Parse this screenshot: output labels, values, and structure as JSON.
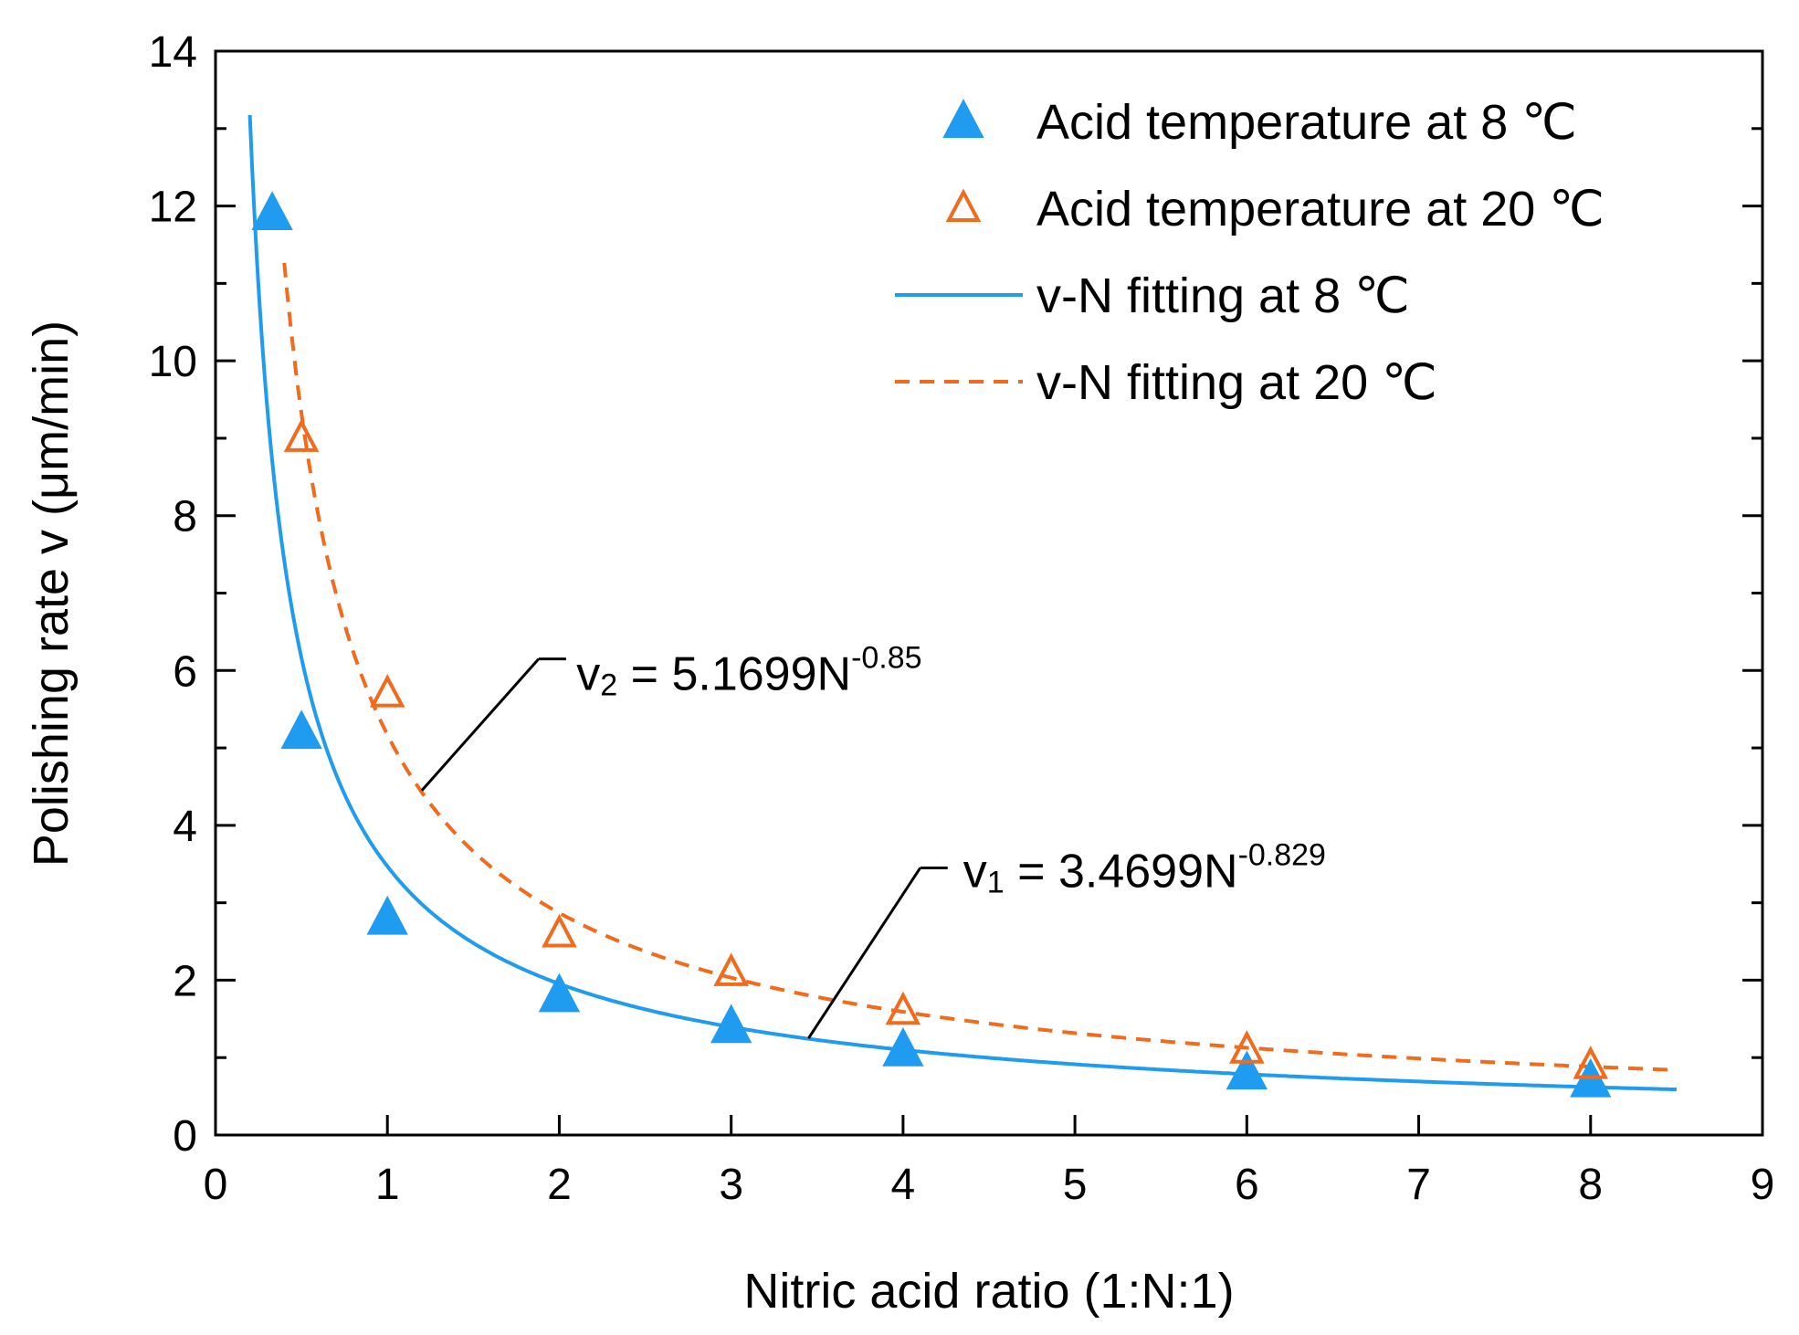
{
  "chart_data": {
    "type": "scatter",
    "title": "",
    "xlabel": "Nitric acid ratio (1:N:1)",
    "ylabel": "Polishing rate v (μm/min)",
    "xlim": [
      0,
      9
    ],
    "ylim": [
      0,
      14
    ],
    "xticks": [
      0,
      1,
      2,
      3,
      4,
      5,
      6,
      7,
      8,
      9
    ],
    "yticks": [
      0,
      2,
      4,
      6,
      8,
      10,
      12,
      14
    ],
    "grid": false,
    "legend_position": "top-right",
    "series": [
      {
        "name": "Acid temperature at 8 ℃",
        "kind": "markers",
        "marker": "filled-triangle",
        "color": "#1f9bf0",
        "x": [
          0.33,
          0.5,
          1,
          2,
          3,
          4,
          6,
          8
        ],
        "y": [
          11.9,
          5.2,
          2.8,
          1.8,
          1.4,
          1.1,
          0.8,
          0.7
        ]
      },
      {
        "name": "Acid temperature at 20 ℃",
        "kind": "markers",
        "marker": "open-triangle",
        "color": "#f26b1d",
        "x": [
          0.5,
          1,
          2,
          3,
          4,
          6,
          8
        ],
        "y": [
          9.0,
          5.7,
          2.6,
          2.1,
          1.6,
          1.1,
          0.9
        ]
      },
      {
        "name": "v-N fitting at 8 ℃",
        "kind": "fit",
        "line": "solid",
        "color": "#1f9bf0",
        "coefficient": 3.4699,
        "exponent": -0.829,
        "x_range": [
          0.2,
          8.5
        ]
      },
      {
        "name": "v-N fitting at 20 ℃",
        "kind": "fit",
        "line": "dashed",
        "color": "#f26b1d",
        "coefficient": 5.1699,
        "exponent": -0.85,
        "x_range": [
          0.4,
          8.5
        ]
      }
    ],
    "annotations": [
      {
        "id": "v1",
        "var": "v",
        "sub": "1",
        "rest": " = 3.4699N",
        "exp": "-0.829",
        "text_at": [
          4.35,
          3.2
        ],
        "leader_from": [
          3.45,
          1.25
        ],
        "leader_to": [
          4.1,
          3.45
        ]
      },
      {
        "id": "v2",
        "var": "v",
        "sub": "2",
        "rest": " = 5.1699N",
        "exp": "-0.85",
        "text_at": [
          2.1,
          5.75
        ],
        "leader_from": [
          1.2,
          4.45
        ],
        "leader_to": [
          1.88,
          6.15
        ]
      }
    ]
  }
}
